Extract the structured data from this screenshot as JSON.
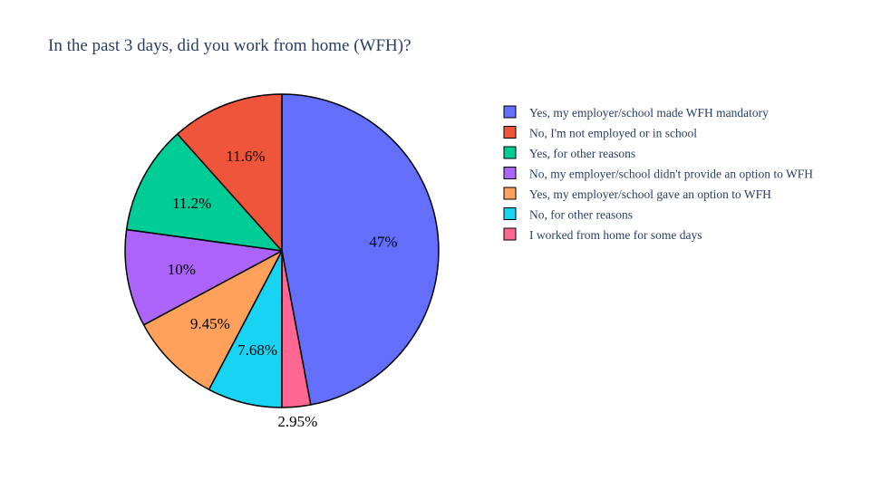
{
  "chart_data": {
    "type": "pie",
    "title": "In the past 3 days, did you work from home (WFH)?",
    "direction": "clockwise",
    "start": "12 o'clock",
    "slices": [
      {
        "label": "Yes, my employer/school made WFH mandatory",
        "value": 47,
        "text": "47%",
        "color": "#636efa"
      },
      {
        "label": "I worked from home for some days",
        "value": 2.95,
        "text": "2.95%",
        "color": "#ff6692"
      },
      {
        "label": "No, for other reasons",
        "value": 7.68,
        "text": "7.68%",
        "color": "#19d3f3"
      },
      {
        "label": "Yes, my employer/school gave an option to WFH",
        "value": 9.45,
        "text": "9.45%",
        "color": "#ffa15a"
      },
      {
        "label": "No, my employer/school didn't provide an option to WFH",
        "value": 10,
        "text": "10%",
        "color": "#ab63fa"
      },
      {
        "label": "Yes, for other reasons",
        "value": 11.2,
        "text": "11.2%",
        "color": "#00cc96"
      },
      {
        "label": "No, I'm not employed or in school",
        "value": 11.6,
        "text": "11.6%",
        "color": "#ef553b"
      }
    ],
    "legend": {
      "position": "right",
      "entries": [
        {
          "label": "Yes, my employer/school made WFH mandatory",
          "color": "#636efa"
        },
        {
          "label": "No, I'm not employed or in school",
          "color": "#ef553b"
        },
        {
          "label": "Yes, for other reasons",
          "color": "#00cc96"
        },
        {
          "label": "No, my employer/school didn't provide an option to WFH",
          "color": "#ab63fa"
        },
        {
          "label": "Yes, my employer/school gave an option to WFH",
          "color": "#ffa15a"
        },
        {
          "label": "No, for other reasons",
          "color": "#19d3f3"
        },
        {
          "label": "I worked from home for some days",
          "color": "#ff6692"
        }
      ]
    }
  }
}
